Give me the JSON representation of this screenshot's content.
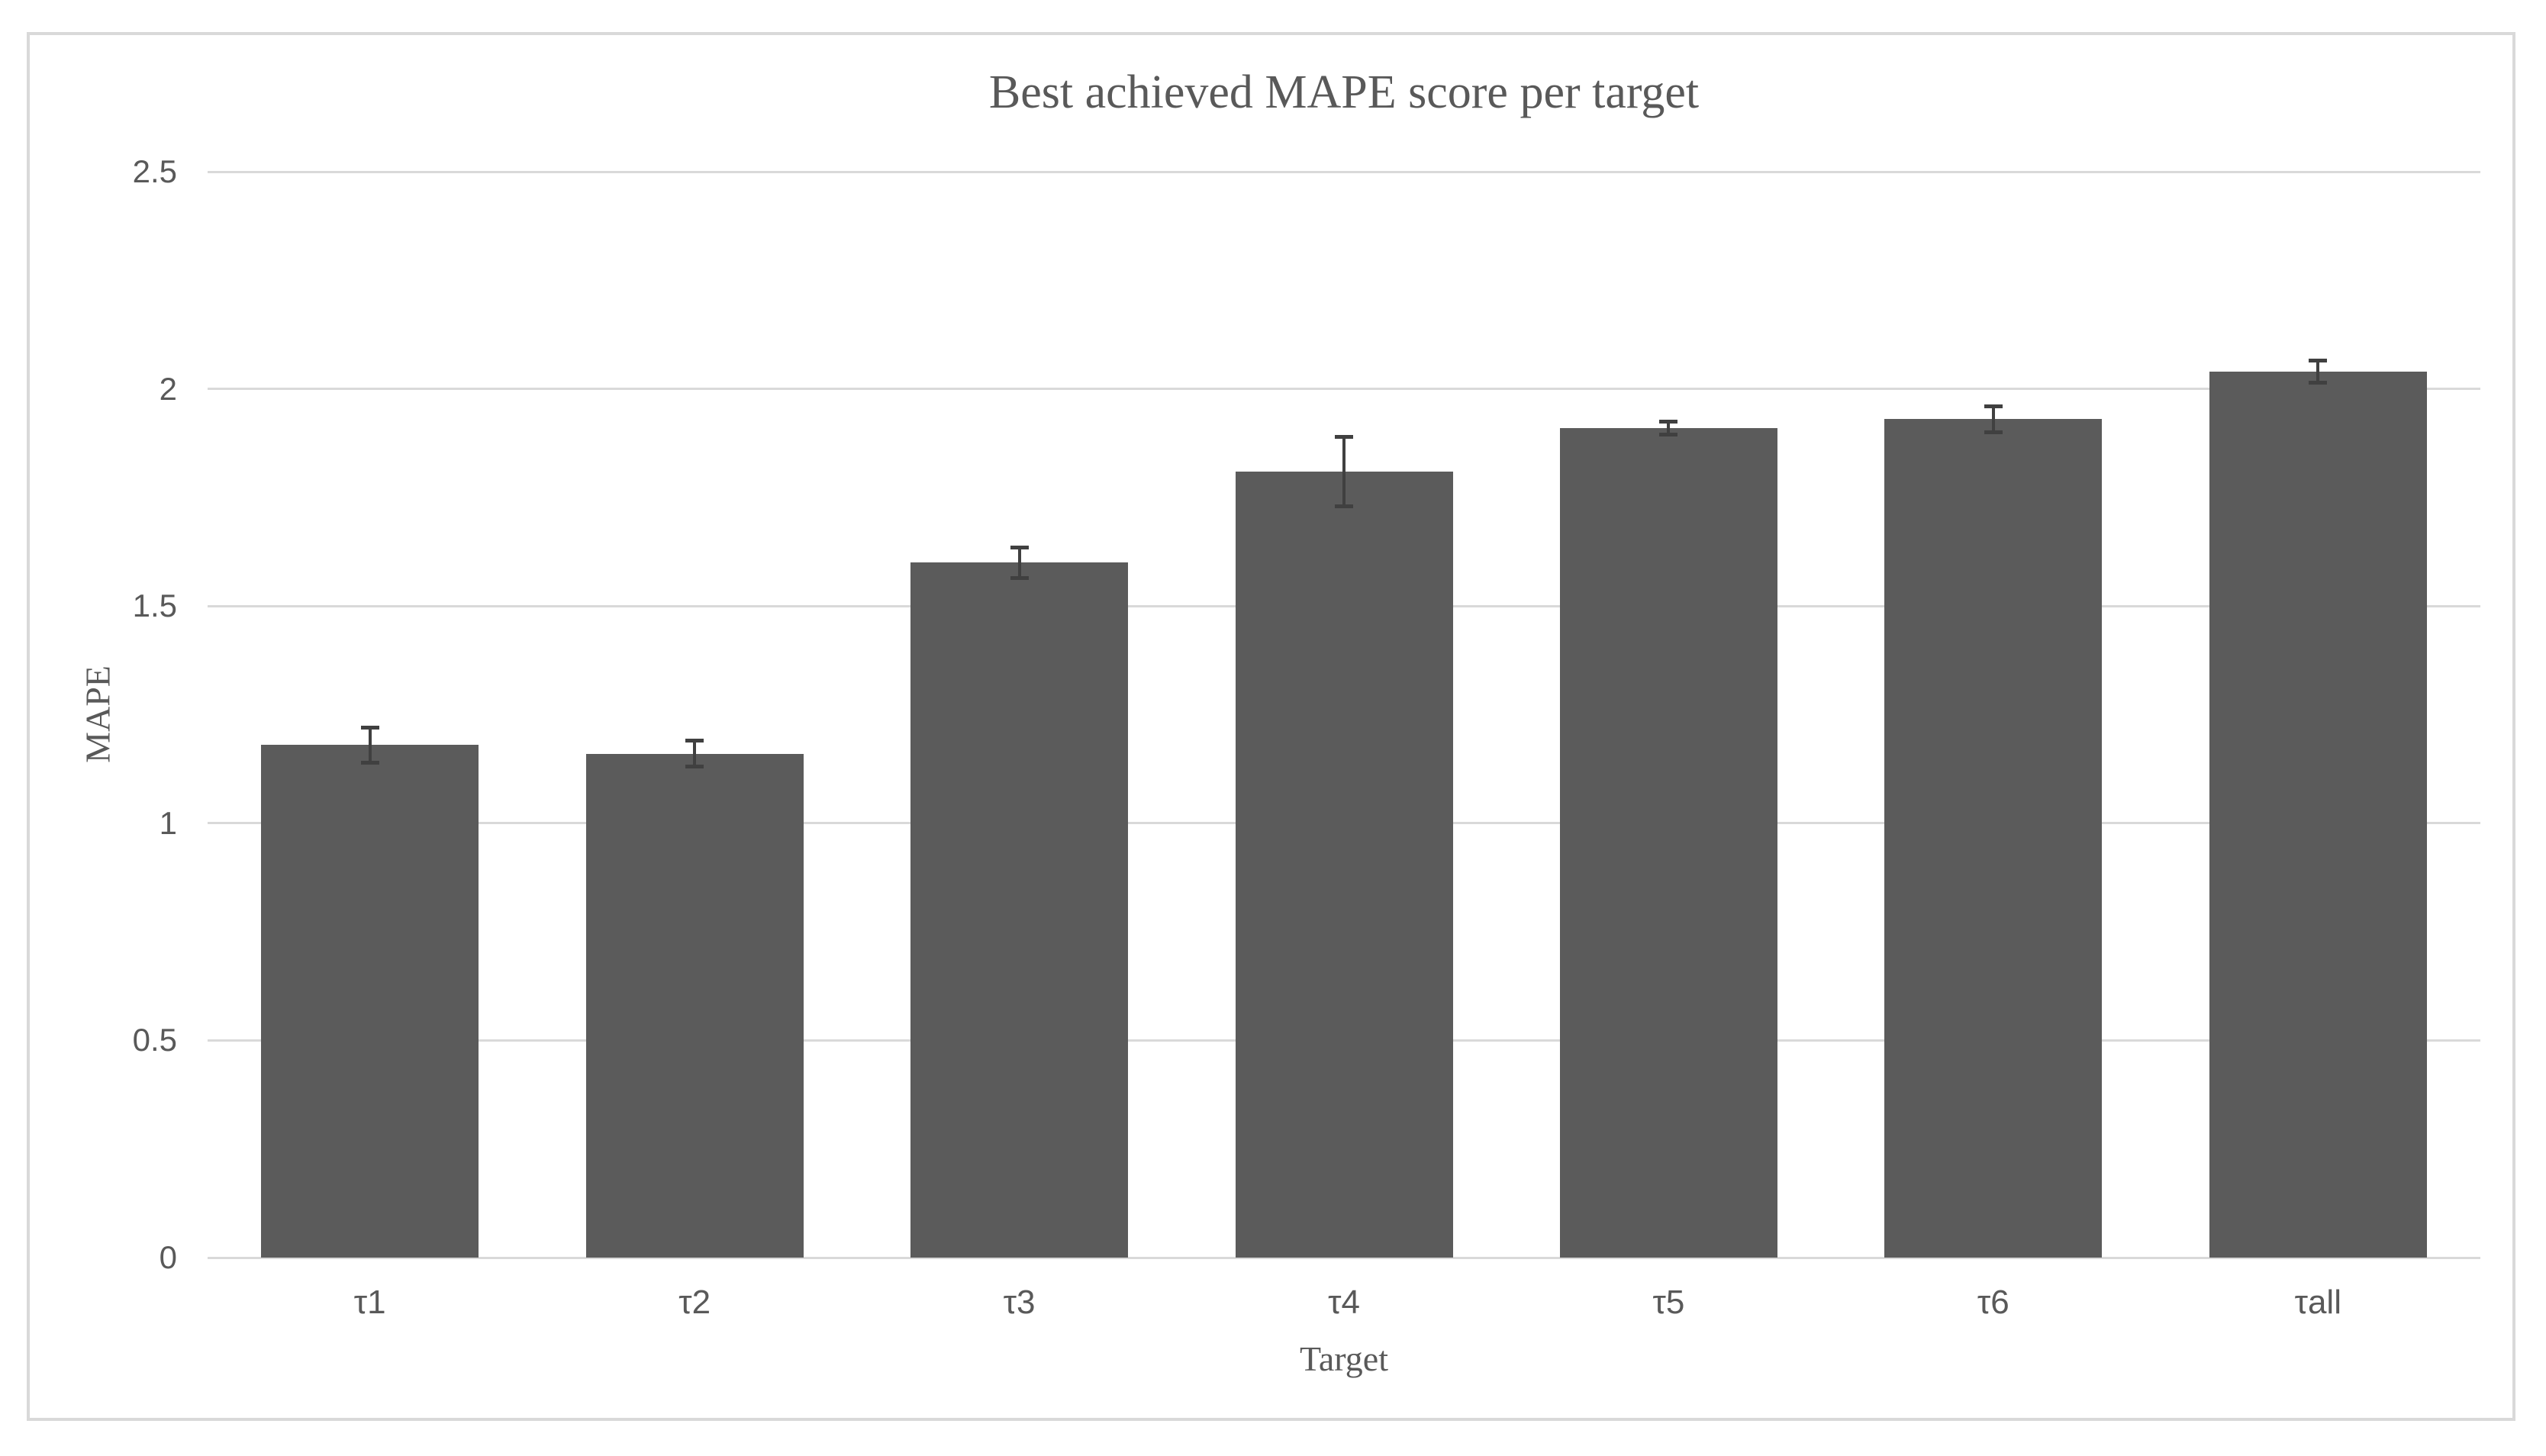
{
  "chart_data": {
    "type": "bar",
    "title": "Best achieved MAPE score per target",
    "xlabel": "Target",
    "ylabel": "MAPE",
    "categories": [
      "τ1",
      "τ2",
      "τ3",
      "τ4",
      "τ5",
      "τ6",
      "τall"
    ],
    "values": [
      1.18,
      1.16,
      1.6,
      1.81,
      1.91,
      1.93,
      2.04
    ],
    "error_bars": [
      0.04,
      0.03,
      0.035,
      0.08,
      0.015,
      0.03,
      0.025
    ],
    "ylim": [
      0,
      2.5
    ],
    "yticks": [
      0,
      0.5,
      1,
      1.5,
      2,
      2.5
    ],
    "ytick_labels": [
      "0",
      "0.5",
      "1",
      "1.5",
      "2",
      "2.5"
    ],
    "grid": "horizontal",
    "legend": "none",
    "bar_color": "#5b5b5b",
    "error_bar_color": "#404040",
    "gridline_color": "#d9d9d9",
    "frame_border_color": "#d9d9d9",
    "text_color": "#595959"
  }
}
